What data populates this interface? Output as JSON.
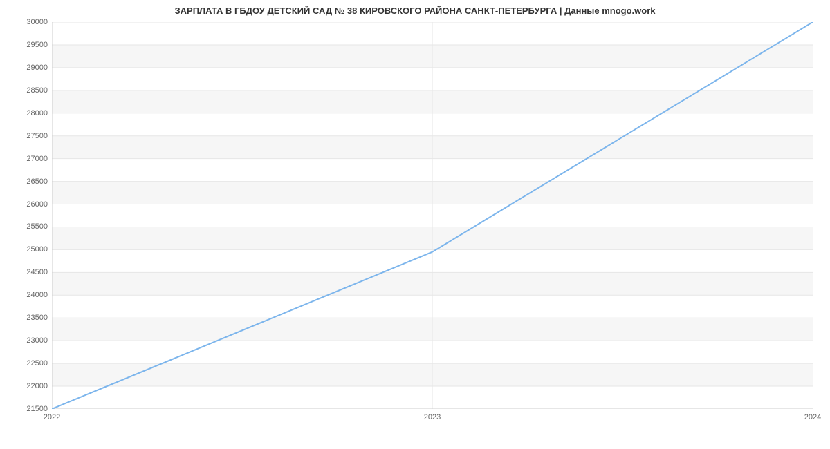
{
  "chart": {
    "type": "line",
    "title": "ЗАРПЛАТА В ГБДОУ ДЕТСКИЙ САД № 38 КИРОВСКОГО РАЙОНА САНКТ-ПЕТЕРБУРГА | Данные mnogo.work",
    "title_fontsize": 13,
    "title_color": "#333333",
    "background_color": "#ffffff",
    "plot_band_color": "#f6f6f6",
    "grid_color": "#e6e6e6",
    "axis_line_color": "#cccccc",
    "tick_label_color": "#666666",
    "tick_label_fontsize": 11,
    "line_color": "#7cb5ec",
    "line_width": 2,
    "x": {
      "min": 2022,
      "max": 2024,
      "ticks": [
        2022,
        2023,
        2024
      ],
      "center_gridline_at": 2023
    },
    "y": {
      "min": 21500,
      "max": 30000,
      "step": 500,
      "ticks": [
        21500,
        22000,
        22500,
        23000,
        23500,
        24000,
        24500,
        25000,
        25500,
        26000,
        26500,
        27000,
        27500,
        28000,
        28500,
        29000,
        29500,
        30000
      ]
    },
    "series": [
      {
        "x": 2022.0,
        "y": 21500
      },
      {
        "x": 2023.0,
        "y": 24950
      },
      {
        "x": 2024.0,
        "y": 30000
      }
    ]
  }
}
